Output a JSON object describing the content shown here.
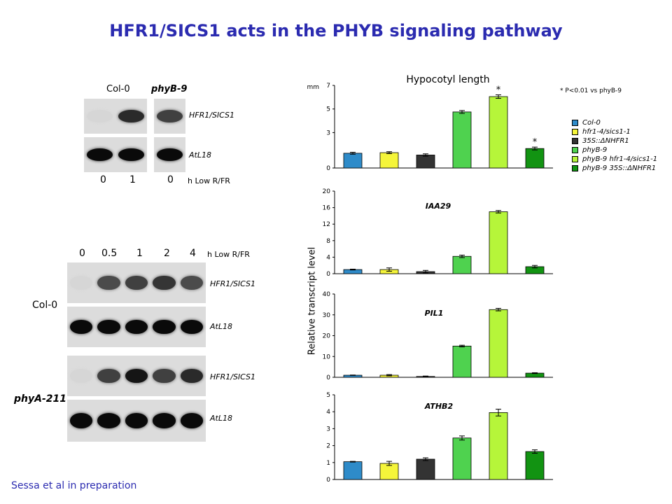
{
  "title": "HFR1/SICS1 acts in the PHYB signaling pathway",
  "footer": "Sessa et al in preparation",
  "blot_top": {
    "col0_label": "Col-0",
    "phyb9_label": "phyB-9",
    "gene1": "HFR1/SICS1",
    "gene2": "AtL18",
    "times": [
      "0",
      "1",
      "0"
    ],
    "time_unit": "h Low R/FR",
    "hfr1_intensity": [
      0.05,
      0.85,
      0.75
    ],
    "atl18_intensity": [
      1,
      1,
      1
    ]
  },
  "blot_bottom": {
    "times": [
      "0",
      "0.5",
      "1",
      "2",
      "4"
    ],
    "time_unit": "h Low R/FR",
    "genotype1": "Col-0",
    "genotype2": "phyA-211",
    "gene1": "HFR1/SICS1",
    "gene2": "AtL18",
    "col0_hfr1_intensity": [
      0.05,
      0.7,
      0.75,
      0.8,
      0.7
    ],
    "phya_hfr1_intensity": [
      0.05,
      0.75,
      0.95,
      0.75,
      0.85
    ]
  },
  "legend": {
    "note": "* P<0.01 vs phyB-9",
    "items": [
      {
        "label": "Col-0",
        "color": "#2e8bc9"
      },
      {
        "label": "hfr1-4/sics1-1",
        "color": "#f5f53a"
      },
      {
        "label": "35S::ΔNHFR1",
        "color": "#333333"
      },
      {
        "label": "phyB-9",
        "color": "#4fd24f"
      },
      {
        "label": "phyB-9 hfr1-4/sics1-1",
        "color": "#b6f53a"
      },
      {
        "label": "phyB-9 35S::ΔNHFR1",
        "color": "#129312"
      }
    ]
  },
  "ylabel_shared": "Relative transcript level",
  "chart_data": [
    {
      "type": "bar",
      "title": "Hypocotyl length",
      "ylabel": "mm",
      "categories": [
        "Col-0",
        "hfr1-4/sics1-1",
        "35S::ΔNHFR1",
        "phyB-9",
        "phyB-9 hfr1-4/sics1-1",
        "phyB-9 35S::ΔNHFR1"
      ],
      "values": [
        1.25,
        1.3,
        1.1,
        4.75,
        6.05,
        1.65
      ],
      "errors": [
        0.08,
        0.08,
        0.1,
        0.12,
        0.15,
        0.12
      ],
      "ylim": [
        0,
        7
      ],
      "yticks": [
        "0",
        "3",
        "5",
        "7"
      ],
      "significant": [
        false,
        false,
        false,
        false,
        true,
        true
      ]
    },
    {
      "type": "bar",
      "title": "IAA29",
      "categories": [
        "Col-0",
        "hfr1-4/sics1-1",
        "35S::ΔNHFR1",
        "phyB-9",
        "phyB-9 hfr1-4/sics1-1",
        "phyB-9 35S::ΔNHFR1"
      ],
      "values": [
        1.0,
        1.0,
        0.5,
        4.2,
        15.0,
        1.7
      ],
      "errors": [
        0.1,
        0.4,
        0.3,
        0.3,
        0.3,
        0.3
      ],
      "ylim": [
        0,
        20
      ],
      "yticks": [
        "0",
        "4",
        "8",
        "12",
        "16",
        "20"
      ]
    },
    {
      "type": "bar",
      "title": "PIL1",
      "categories": [
        "Col-0",
        "hfr1-4/sics1-1",
        "35S::ΔNHFR1",
        "phyB-9",
        "phyB-9 hfr1-4/sics1-1",
        "phyB-9 35S::ΔNHFR1"
      ],
      "values": [
        1.0,
        1.0,
        0.4,
        15.0,
        32.5,
        2.0
      ],
      "errors": [
        0.1,
        0.3,
        0.2,
        0.4,
        0.6,
        0.2
      ],
      "ylim": [
        0,
        40
      ],
      "yticks": [
        "0",
        "10",
        "20",
        "30",
        "40"
      ]
    },
    {
      "type": "bar",
      "title": "ATHB2",
      "categories": [
        "Col-0",
        "hfr1-4/sics1-1",
        "35S::ΔNHFR1",
        "phyB-9",
        "phyB-9 hfr1-4/sics1-1",
        "phyB-9 35S::ΔNHFR1"
      ],
      "values": [
        1.05,
        0.95,
        1.2,
        2.45,
        3.95,
        1.65
      ],
      "errors": [
        0.02,
        0.12,
        0.08,
        0.12,
        0.2,
        0.1
      ],
      "ylim": [
        0,
        5
      ],
      "yticks": [
        "0",
        "1",
        "2",
        "3",
        "4",
        "5"
      ]
    }
  ]
}
